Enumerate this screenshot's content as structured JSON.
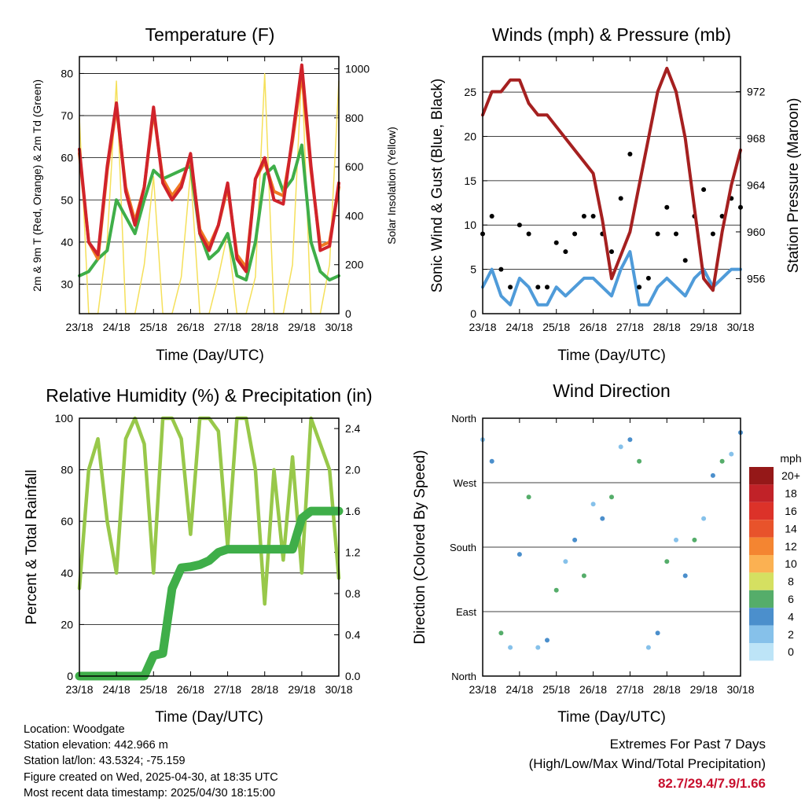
{
  "colors": {
    "temp2m": "#d0232b",
    "temp9m": "#f07a23",
    "dewpoint": "#3fae49",
    "solar": "#f5e05a",
    "wind": "#4f9bd9",
    "gust": "#000000",
    "pressure": "#a52020",
    "rh": "#98c84a",
    "precip": "#3fae49",
    "extremes_text": "#c8102e"
  },
  "x_ticks": [
    "23/18",
    "24/18",
    "25/18",
    "26/18",
    "27/18",
    "28/18",
    "29/18",
    "30/18"
  ],
  "chart_data": [
    {
      "type": "line",
      "title": "Temperature (F)",
      "xlabel": "Time (Day/UTC)",
      "ylabel": "2m & 9m T (Red, Orange) & 2m Td (Green)",
      "y2label": "Solar Insolation (Yellow)",
      "ylim": [
        23,
        84
      ],
      "y2lim": [
        0,
        1050
      ],
      "yticks": [
        "30",
        "40",
        "50",
        "60",
        "70",
        "80"
      ],
      "y2ticks": [
        "0",
        "200",
        "400",
        "600",
        "800",
        "1000"
      ],
      "x": [
        0,
        0.25,
        0.5,
        0.75,
        1,
        1.25,
        1.5,
        1.75,
        2,
        2.25,
        2.5,
        2.75,
        3,
        3.25,
        3.5,
        3.75,
        4,
        4.25,
        4.5,
        4.75,
        5,
        5.25,
        5.5,
        5.75,
        6,
        6.25,
        6.5,
        6.75,
        7
      ],
      "series": [
        {
          "values": [
            62,
            40,
            37,
            58,
            73,
            52,
            44,
            53,
            72,
            54,
            50,
            53,
            61,
            42,
            38,
            44,
            54,
            36,
            33,
            55,
            60,
            50,
            49,
            65,
            82,
            58,
            38,
            39,
            54
          ],
          "color": "#d0232b",
          "axis": "left"
        },
        {
          "values": [
            61,
            40,
            36,
            57,
            72,
            53,
            45,
            53,
            71,
            55,
            51,
            54,
            60,
            43,
            39,
            44,
            53,
            37,
            34,
            55,
            59,
            52,
            51,
            64,
            80,
            57,
            39,
            40,
            53
          ],
          "color": "#f07a23",
          "axis": "left"
        },
        {
          "values": [
            32,
            33,
            36,
            38,
            50,
            46,
            42,
            50,
            57,
            55,
            56,
            57,
            58,
            42,
            36,
            38,
            42,
            32,
            31,
            40,
            56,
            58,
            52,
            55,
            63,
            40,
            33,
            31,
            32
          ],
          "color": "#3fae49",
          "axis": "left"
        },
        {
          "values": [
            800,
            0,
            0,
            300,
            950,
            0,
            0,
            200,
            560,
            0,
            0,
            150,
            580,
            0,
            0,
            150,
            330,
            0,
            0,
            150,
            980,
            0,
            0,
            200,
            1000,
            0,
            0,
            200,
            950
          ],
          "color": "#f5e05a",
          "axis": "right"
        }
      ]
    },
    {
      "type": "line",
      "title": "Winds (mph) & Pressure (mb)",
      "xlabel": "Time (Day/UTC)",
      "ylabel": "Sonic Wind & Gust (Blue, Black)",
      "y2label": "Station Pressure (Maroon)",
      "ylim": [
        0,
        29
      ],
      "y2lim": [
        953,
        975
      ],
      "yticks": [
        "0",
        "5",
        "10",
        "15",
        "20",
        "25"
      ],
      "y2ticks": [
        "956",
        "960",
        "964",
        "968",
        "972"
      ],
      "x": [
        0,
        0.25,
        0.5,
        0.75,
        1,
        1.25,
        1.5,
        1.75,
        2,
        2.25,
        2.5,
        2.75,
        3,
        3.25,
        3.5,
        3.75,
        4,
        4.25,
        4.5,
        4.75,
        5,
        5.25,
        5.5,
        5.75,
        6,
        6.25,
        6.5,
        6.75,
        7
      ],
      "series": [
        {
          "values": [
            970,
            972,
            972,
            973,
            973,
            971,
            970,
            970,
            969,
            968,
            967,
            966,
            965,
            961,
            956,
            958,
            960,
            964,
            968,
            972,
            974,
            972,
            968,
            962,
            956,
            955,
            960,
            964,
            967
          ],
          "color": "#a52020",
          "axis": "right"
        },
        {
          "values": [
            3,
            5,
            2,
            1,
            4,
            3,
            1,
            1,
            3,
            2,
            3,
            4,
            4,
            3,
            2,
            5,
            7,
            1,
            1,
            3,
            4,
            3,
            2,
            4,
            5,
            3,
            4,
            5,
            5
          ],
          "color": "#4f9bd9",
          "axis": "left"
        },
        {
          "values": [
            9,
            11,
            5,
            3,
            10,
            9,
            3,
            3,
            8,
            7,
            9,
            11,
            11,
            9,
            7,
            13,
            18,
            3,
            4,
            9,
            12,
            9,
            6,
            11,
            14,
            9,
            11,
            13,
            12
          ],
          "color": "#000000",
          "axis": "left"
        }
      ]
    },
    {
      "type": "line",
      "title": "Relative Humidity (%) & Precipitation (in)",
      "xlabel": "Time (Day/UTC)",
      "ylabel": "Percent & Total Rainfall",
      "ylim": [
        0,
        100
      ],
      "y2lim": [
        0,
        2.5
      ],
      "yticks": [
        "0",
        "20",
        "40",
        "60",
        "80",
        "100"
      ],
      "y2ticks": [
        "0.0",
        "0.4",
        "0.8",
        "1.2",
        "1.6",
        "2.0",
        "2.4"
      ],
      "x": [
        0,
        0.25,
        0.5,
        0.75,
        1,
        1.25,
        1.5,
        1.75,
        2,
        2.25,
        2.5,
        2.75,
        3,
        3.25,
        3.5,
        3.75,
        4,
        4.25,
        4.5,
        4.75,
        5,
        5.25,
        5.5,
        5.75,
        6,
        6.25,
        6.5,
        6.75,
        7
      ],
      "series": [
        {
          "values": [
            34,
            80,
            92,
            60,
            40,
            92,
            100,
            90,
            40,
            100,
            100,
            92,
            55,
            100,
            100,
            95,
            50,
            100,
            100,
            80,
            28,
            80,
            45,
            85,
            40,
            100,
            90,
            80,
            38
          ],
          "color": "#98c84a",
          "axis": "left"
        },
        {
          "values": [
            0,
            0,
            0,
            0,
            0,
            0,
            0,
            0,
            0.2,
            0.22,
            0.85,
            1.05,
            1.06,
            1.08,
            1.12,
            1.2,
            1.23,
            1.23,
            1.23,
            1.23,
            1.23,
            1.23,
            1.23,
            1.23,
            1.53,
            1.6,
            1.6,
            1.6,
            1.6
          ],
          "color": "#3fae49",
          "axis": "right"
        }
      ]
    },
    {
      "type": "scatter",
      "title": "Wind Direction",
      "xlabel": "Time (Day/UTC)",
      "ylabel": "Direction (Colored By Speed)",
      "yticks": [
        "North",
        "East",
        "South",
        "West",
        "North"
      ],
      "ylim": [
        0,
        360
      ],
      "colorbar": {
        "title": "mph",
        "labels": [
          "0",
          "2",
          "4",
          "6",
          "8",
          "10",
          "12",
          "14",
          "16",
          "18",
          "20+"
        ],
        "colors": [
          "#bde4f7",
          "#86c1ea",
          "#4b8fcc",
          "#55ad6a",
          "#d5e061",
          "#fbb152",
          "#f48531",
          "#e8532b",
          "#dc3229",
          "#c12228",
          "#951818"
        ]
      },
      "x": [
        0,
        0.25,
        0.5,
        0.75,
        1,
        1.25,
        1.5,
        1.75,
        2,
        2.25,
        2.5,
        2.75,
        3,
        3.25,
        3.5,
        3.75,
        4,
        4.25,
        4.5,
        4.75,
        5,
        5.25,
        5.5,
        5.75,
        6,
        6.25,
        6.5,
        6.75,
        7
      ],
      "series": [
        {
          "values": [
            330,
            300,
            60,
            40,
            170,
            250,
            40,
            50,
            120,
            160,
            190,
            140,
            240,
            220,
            250,
            320,
            330,
            300,
            40,
            60,
            160,
            190,
            140,
            190,
            220,
            280,
            300,
            310,
            340
          ]
        }
      ]
    }
  ],
  "info": {
    "location": "Location: Woodgate",
    "elevation": "Station elevation: 442.966 m",
    "latlon": "Station lat/lon: 43.5324; -75.159",
    "created": "Figure created on Wed, 2025-04-30, at 18:35 UTC",
    "recent": "Most recent data timestamp: 2025/04/30 18:15:00"
  },
  "extremes": {
    "title": "Extremes For Past 7 Days",
    "subtitle": "(High/Low/Max Wind/Total Precipitation)",
    "values": "82.7/29.4/7.9/1.66"
  }
}
